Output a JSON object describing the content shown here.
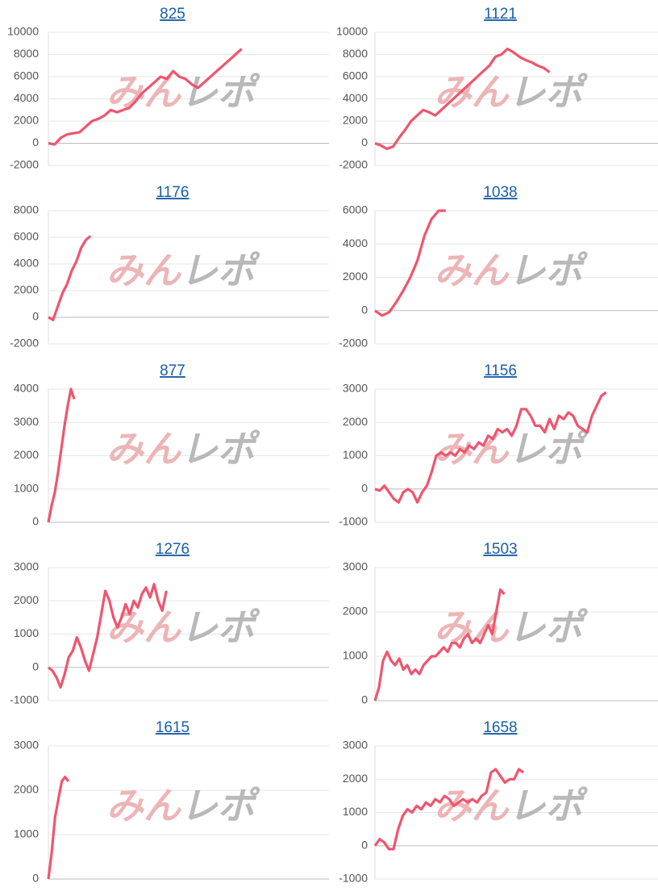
{
  "watermark": [
    "みん",
    "レポ"
  ],
  "chart_data": [
    {
      "type": "line",
      "title": "825",
      "color": "#f0556e",
      "grid": true,
      "xlim": [
        0,
        45
      ],
      "ylim": [
        -2000,
        10000
      ],
      "yticks": [
        -2000,
        0,
        2000,
        4000,
        6000,
        8000,
        10000
      ],
      "values": [
        0,
        -100,
        500,
        800,
        900,
        1000,
        1500,
        2000,
        2200,
        2500,
        3000,
        2800,
        3000,
        3200,
        3800,
        4500,
        5000,
        5500,
        6000,
        5800,
        6500,
        6000,
        5800,
        5300,
        5000,
        5500,
        6000,
        6500,
        7000,
        7500,
        8000,
        8500
      ]
    },
    {
      "type": "line",
      "title": "1121",
      "color": "#f0556e",
      "grid": true,
      "xlim": [
        0,
        47
      ],
      "ylim": [
        -2000,
        10000
      ],
      "yticks": [
        -2000,
        0,
        2000,
        4000,
        6000,
        8000,
        10000
      ],
      "values": [
        0,
        -200,
        -500,
        -300,
        500,
        1200,
        2000,
        2500,
        3000,
        2800,
        2500,
        3000,
        3500,
        4000,
        4500,
        5000,
        5500,
        6000,
        6500,
        7000,
        7800,
        8000,
        8500,
        8200,
        7800,
        7500,
        7300,
        7000,
        6800,
        6400
      ]
    },
    {
      "type": "line",
      "title": "1176",
      "color": "#f0556e",
      "grid": true,
      "xlim": [
        0,
        60
      ],
      "ylim": [
        -2000,
        8000
      ],
      "yticks": [
        -2000,
        0,
        2000,
        4000,
        6000,
        8000
      ],
      "values": [
        0,
        -200,
        800,
        1800,
        2500,
        3500,
        4200,
        5200,
        5800,
        6100
      ]
    },
    {
      "type": "line",
      "title": "1038",
      "color": "#f0556e",
      "grid": true,
      "xlim": [
        0,
        40
      ],
      "ylim": [
        -2000,
        6000
      ],
      "yticks": [
        -2000,
        0,
        2000,
        4000,
        6000
      ],
      "values": [
        0,
        -300,
        -100,
        500,
        1200,
        2000,
        3000,
        4500,
        5500,
        6000,
        6000
      ]
    },
    {
      "type": "line",
      "title": "877",
      "color": "#f0556e",
      "grid": true,
      "xlim": [
        0,
        87
      ],
      "ylim": [
        0,
        4000
      ],
      "yticks": [
        0,
        1000,
        2000,
        3000,
        4000
      ],
      "values": [
        0,
        500,
        900,
        1500,
        2200,
        2900,
        3500,
        4000,
        3700
      ]
    },
    {
      "type": "line",
      "title": "1156",
      "color": "#f0556e",
      "grid": true,
      "xlim": [
        0,
        60
      ],
      "ylim": [
        -1000,
        3000
      ],
      "yticks": [
        -1000,
        0,
        1000,
        2000,
        3000
      ],
      "values": [
        0,
        -50,
        100,
        -100,
        -300,
        -400,
        -100,
        0,
        -100,
        -400,
        -100,
        100,
        500,
        1000,
        1100,
        1000,
        1100,
        1000,
        1200,
        1100,
        1300,
        1200,
        1400,
        1300,
        1600,
        1500,
        1800,
        1700,
        1800,
        1600,
        1900,
        2400,
        2400,
        2200,
        1900,
        1900,
        1700,
        2100,
        1800,
        2200,
        2100,
        2300,
        2200,
        1900,
        1800,
        1700,
        2200,
        2500,
        2800,
        2900
      ]
    },
    {
      "type": "line",
      "title": "1276",
      "color": "#f0556e",
      "grid": true,
      "xlim": [
        0,
        69
      ],
      "ylim": [
        -1000,
        3000
      ],
      "yticks": [
        -1000,
        0,
        1000,
        2000,
        3000
      ],
      "values": [
        0,
        -100,
        -300,
        -600,
        -200,
        300,
        500,
        900,
        600,
        200,
        -100,
        400,
        900,
        1600,
        2300,
        2000,
        1500,
        1200,
        1500,
        1900,
        1600,
        2000,
        1800,
        2200,
        2400,
        2100,
        2500,
        2000,
        1700,
        2300
      ]
    },
    {
      "type": "line",
      "title": "1503",
      "color": "#f0556e",
      "grid": true,
      "xlim": [
        0,
        70
      ],
      "ylim": [
        0,
        3000
      ],
      "yticks": [
        0,
        1000,
        2000,
        3000
      ],
      "values": [
        0,
        300,
        900,
        1100,
        900,
        800,
        950,
        700,
        800,
        600,
        700,
        600,
        800,
        900,
        1000,
        1000,
        1100,
        1200,
        1100,
        1300,
        1300,
        1200,
        1400,
        1500,
        1300,
        1400,
        1300,
        1500,
        1700,
        1500,
        2000,
        2500,
        2400
      ]
    },
    {
      "type": "line",
      "title": "1615",
      "color": "#f0556e",
      "grid": true,
      "xlim": [
        0,
        84
      ],
      "ylim": [
        0,
        3000
      ],
      "yticks": [
        0,
        1000,
        2000,
        3000
      ],
      "values": [
        0,
        600,
        1400,
        1800,
        2200,
        2300,
        2200
      ]
    },
    {
      "type": "line",
      "title": "1658",
      "color": "#f0556e",
      "grid": true,
      "xlim": [
        0,
        61
      ],
      "ylim": [
        -1000,
        3000
      ],
      "yticks": [
        -1000,
        0,
        1000,
        2000,
        3000
      ],
      "values": [
        0,
        200,
        100,
        -100,
        -100,
        500,
        900,
        1100,
        1000,
        1200,
        1100,
        1300,
        1200,
        1400,
        1300,
        1500,
        1400,
        1200,
        1300,
        1400,
        1300,
        1400,
        1300,
        1500,
        1600,
        2200,
        2300,
        2100,
        1900,
        2000,
        2000,
        2300,
        2200
      ]
    }
  ]
}
